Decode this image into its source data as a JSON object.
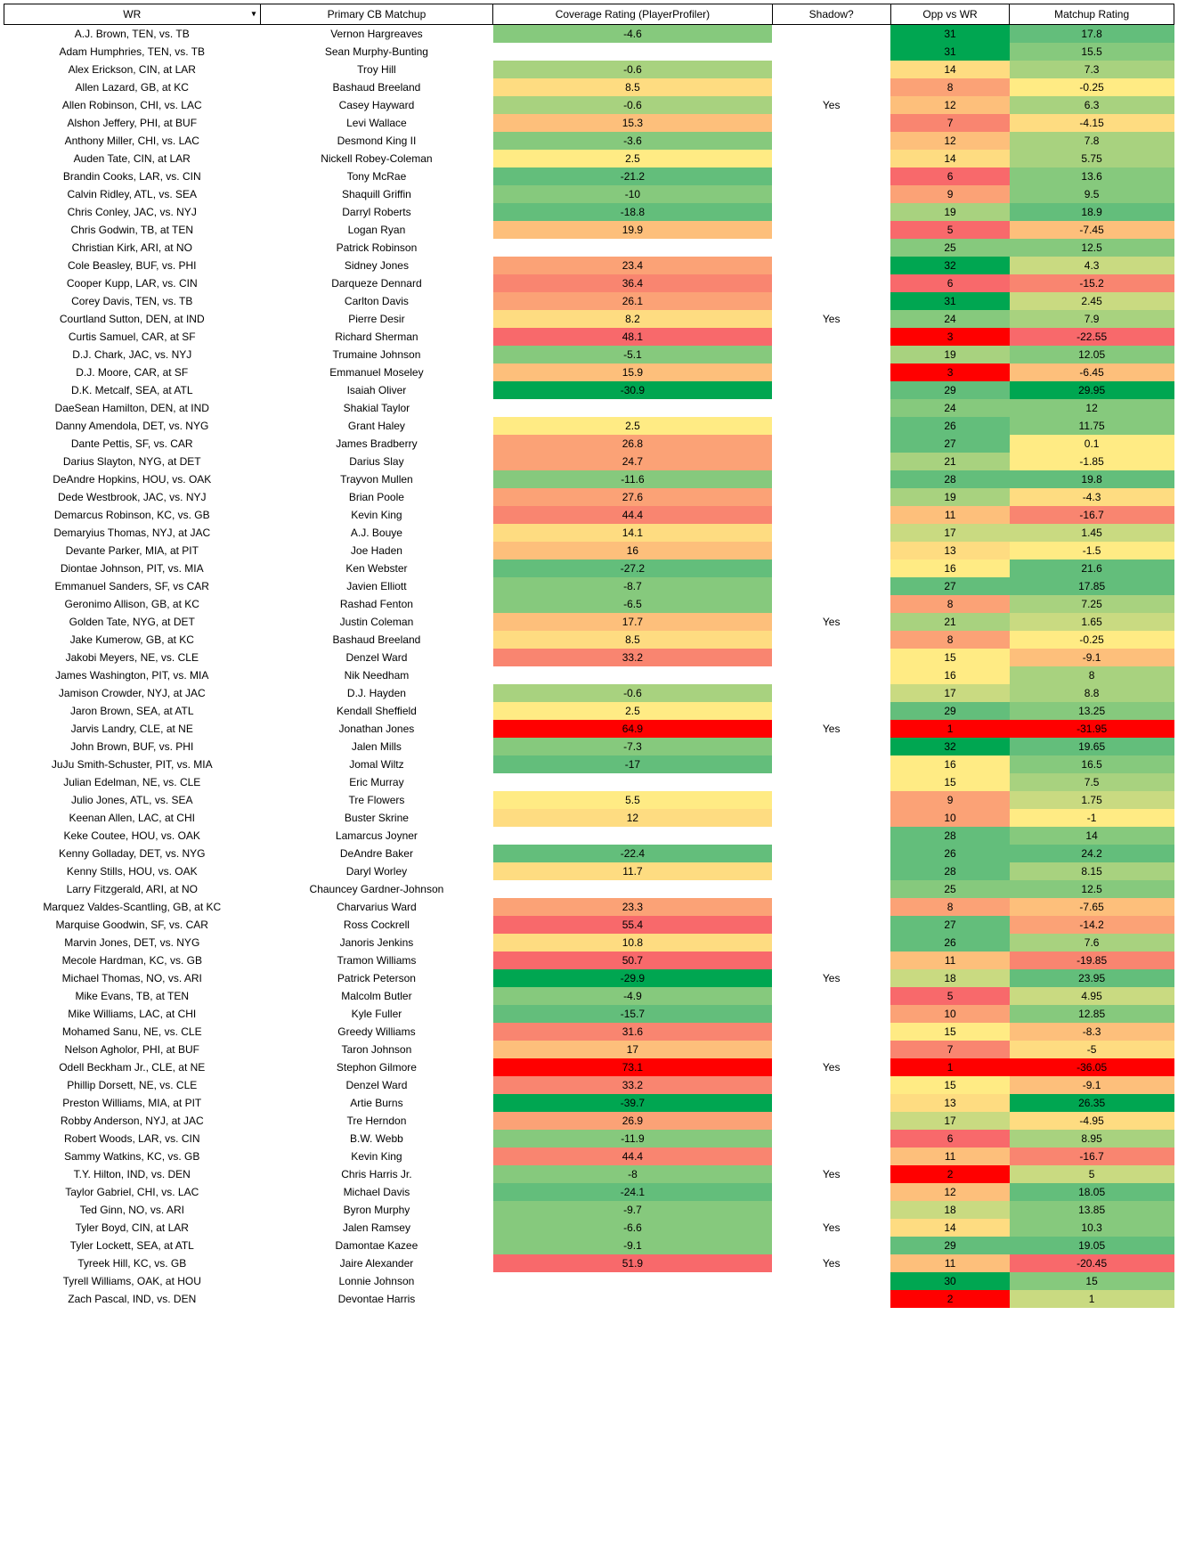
{
  "headers": {
    "wr": "WR",
    "cb": "Primary CB Matchup",
    "coverage": "Coverage Rating (PlayerProfiler)",
    "shadow": "Shadow?",
    "opp": "Opp vs WR",
    "matchup": "Matchup Rating"
  },
  "palette": {
    "g5": "#00a651",
    "g4": "#63be7b",
    "g3": "#86c97d",
    "g2": "#a8d27f",
    "g1": "#c9da81",
    "y2": "#ffeb84",
    "y1": "#fedc81",
    "o1": "#fdbf7b",
    "o2": "#fba276",
    "o3": "#f98570",
    "r1": "#f8696b",
    "r2": "#ff0000",
    "white": "#ffffff"
  },
  "rows": [
    {
      "wr": "A.J. Brown, TEN, vs. TB",
      "cb": "Vernon Hargreaves",
      "cov": "-4.6",
      "covC": "g3",
      "shadow": "",
      "opp": "31",
      "oppC": "g5",
      "match": "17.8",
      "matchC": "g4"
    },
    {
      "wr": "Adam Humphries, TEN, vs. TB",
      "cb": "Sean Murphy-Bunting",
      "cov": "",
      "covC": "white",
      "shadow": "",
      "opp": "31",
      "oppC": "g5",
      "match": "15.5",
      "matchC": "g3"
    },
    {
      "wr": "Alex Erickson, CIN, at LAR",
      "cb": "Troy Hill",
      "cov": "-0.6",
      "covC": "g2",
      "shadow": "",
      "opp": "14",
      "oppC": "y1",
      "match": "7.3",
      "matchC": "g2"
    },
    {
      "wr": "Allen Lazard, GB, at KC",
      "cb": "Bashaud Breeland",
      "cov": "8.5",
      "covC": "y1",
      "shadow": "",
      "opp": "8",
      "oppC": "o2",
      "match": "-0.25",
      "matchC": "y2"
    },
    {
      "wr": "Allen Robinson, CHI, vs. LAC",
      "cb": "Casey Hayward",
      "cov": "-0.6",
      "covC": "g2",
      "shadow": "Yes",
      "opp": "12",
      "oppC": "o1",
      "match": "6.3",
      "matchC": "g2"
    },
    {
      "wr": "Alshon Jeffery, PHI, at BUF",
      "cb": "Levi Wallace",
      "cov": "15.3",
      "covC": "o1",
      "shadow": "",
      "opp": "7",
      "oppC": "o3",
      "match": "-4.15",
      "matchC": "y1"
    },
    {
      "wr": "Anthony Miller, CHI, vs. LAC",
      "cb": "Desmond King II",
      "cov": "-3.6",
      "covC": "g3",
      "shadow": "",
      "opp": "12",
      "oppC": "o1",
      "match": "7.8",
      "matchC": "g2"
    },
    {
      "wr": "Auden Tate, CIN, at LAR",
      "cb": "Nickell Robey-Coleman",
      "cov": "2.5",
      "covC": "y2",
      "shadow": "",
      "opp": "14",
      "oppC": "y1",
      "match": "5.75",
      "matchC": "g2"
    },
    {
      "wr": "Brandin Cooks, LAR, vs. CIN",
      "cb": "Tony McRae",
      "cov": "-21.2",
      "covC": "g4",
      "shadow": "",
      "opp": "6",
      "oppC": "r1",
      "match": "13.6",
      "matchC": "g3"
    },
    {
      "wr": "Calvin Ridley, ATL, vs. SEA",
      "cb": "Shaquill Griffin",
      "cov": "-10",
      "covC": "g3",
      "shadow": "",
      "opp": "9",
      "oppC": "o2",
      "match": "9.5",
      "matchC": "g3"
    },
    {
      "wr": "Chris Conley, JAC, vs. NYJ",
      "cb": "Darryl Roberts",
      "cov": "-18.8",
      "covC": "g4",
      "shadow": "",
      "opp": "19",
      "oppC": "g2",
      "match": "18.9",
      "matchC": "g4"
    },
    {
      "wr": "Chris Godwin, TB, at TEN",
      "cb": "Logan Ryan",
      "cov": "19.9",
      "covC": "o1",
      "shadow": "",
      "opp": "5",
      "oppC": "r1",
      "match": "-7.45",
      "matchC": "o1"
    },
    {
      "wr": "Christian Kirk, ARI, at NO",
      "cb": "Patrick Robinson",
      "cov": "",
      "covC": "white",
      "shadow": "",
      "opp": "25",
      "oppC": "g3",
      "match": "12.5",
      "matchC": "g3"
    },
    {
      "wr": "Cole Beasley, BUF, vs. PHI",
      "cb": "Sidney Jones",
      "cov": "23.4",
      "covC": "o2",
      "shadow": "",
      "opp": "32",
      "oppC": "g5",
      "match": "4.3",
      "matchC": "g1"
    },
    {
      "wr": "Cooper Kupp, LAR, vs. CIN",
      "cb": "Darqueze Dennard",
      "cov": "36.4",
      "covC": "o3",
      "shadow": "",
      "opp": "6",
      "oppC": "r1",
      "match": "-15.2",
      "matchC": "o3"
    },
    {
      "wr": "Corey Davis, TEN, vs. TB",
      "cb": "Carlton Davis",
      "cov": "26.1",
      "covC": "o2",
      "shadow": "",
      "opp": "31",
      "oppC": "g5",
      "match": "2.45",
      "matchC": "g1"
    },
    {
      "wr": "Courtland Sutton, DEN, at IND",
      "cb": "Pierre Desir",
      "cov": "8.2",
      "covC": "y1",
      "shadow": "Yes",
      "opp": "24",
      "oppC": "g3",
      "match": "7.9",
      "matchC": "g2"
    },
    {
      "wr": "Curtis Samuel, CAR, at SF",
      "cb": "Richard Sherman",
      "cov": "48.1",
      "covC": "r1",
      "shadow": "",
      "opp": "3",
      "oppC": "r2",
      "match": "-22.55",
      "matchC": "r1"
    },
    {
      "wr": "D.J. Chark, JAC, vs. NYJ",
      "cb": "Trumaine Johnson",
      "cov": "-5.1",
      "covC": "g3",
      "shadow": "",
      "opp": "19",
      "oppC": "g2",
      "match": "12.05",
      "matchC": "g3"
    },
    {
      "wr": "D.J. Moore, CAR, at SF",
      "cb": "Emmanuel Moseley",
      "cov": "15.9",
      "covC": "o1",
      "shadow": "",
      "opp": "3",
      "oppC": "r2",
      "match": "-6.45",
      "matchC": "o1"
    },
    {
      "wr": "D.K. Metcalf, SEA, at ATL",
      "cb": "Isaiah Oliver",
      "cov": "-30.9",
      "covC": "g5",
      "shadow": "",
      "opp": "29",
      "oppC": "g4",
      "match": "29.95",
      "matchC": "g5"
    },
    {
      "wr": "DaeSean Hamilton, DEN, at IND",
      "cb": "Shakial Taylor",
      "cov": "",
      "covC": "white",
      "shadow": "",
      "opp": "24",
      "oppC": "g3",
      "match": "12",
      "matchC": "g3"
    },
    {
      "wr": "Danny Amendola, DET, vs. NYG",
      "cb": "Grant Haley",
      "cov": "2.5",
      "covC": "y2",
      "shadow": "",
      "opp": "26",
      "oppC": "g4",
      "match": "11.75",
      "matchC": "g3"
    },
    {
      "wr": "Dante Pettis, SF, vs. CAR",
      "cb": "James Bradberry",
      "cov": "26.8",
      "covC": "o2",
      "shadow": "",
      "opp": "27",
      "oppC": "g4",
      "match": "0.1",
      "matchC": "y2"
    },
    {
      "wr": "Darius Slayton, NYG, at DET",
      "cb": "Darius Slay",
      "cov": "24.7",
      "covC": "o2",
      "shadow": "",
      "opp": "21",
      "oppC": "g2",
      "match": "-1.85",
      "matchC": "y2"
    },
    {
      "wr": "DeAndre Hopkins, HOU, vs. OAK",
      "cb": "Trayvon Mullen",
      "cov": "-11.6",
      "covC": "g3",
      "shadow": "",
      "opp": "28",
      "oppC": "g4",
      "match": "19.8",
      "matchC": "g4"
    },
    {
      "wr": "Dede Westbrook, JAC, vs. NYJ",
      "cb": "Brian Poole",
      "cov": "27.6",
      "covC": "o2",
      "shadow": "",
      "opp": "19",
      "oppC": "g2",
      "match": "-4.3",
      "matchC": "y1"
    },
    {
      "wr": "Demarcus Robinson, KC, vs. GB",
      "cb": "Kevin King",
      "cov": "44.4",
      "covC": "o3",
      "shadow": "",
      "opp": "11",
      "oppC": "o1",
      "match": "-16.7",
      "matchC": "o3"
    },
    {
      "wr": "Demaryius Thomas, NYJ, at JAC",
      "cb": "A.J. Bouye",
      "cov": "14.1",
      "covC": "y1",
      "shadow": "",
      "opp": "17",
      "oppC": "g1",
      "match": "1.45",
      "matchC": "g1"
    },
    {
      "wr": "Devante Parker, MIA, at PIT",
      "cb": "Joe Haden",
      "cov": "16",
      "covC": "o1",
      "shadow": "",
      "opp": "13",
      "oppC": "y1",
      "match": "-1.5",
      "matchC": "y2"
    },
    {
      "wr": "Diontae Johnson, PIT, vs. MIA",
      "cb": "Ken Webster",
      "cov": "-27.2",
      "covC": "g4",
      "shadow": "",
      "opp": "16",
      "oppC": "y2",
      "match": "21.6",
      "matchC": "g4"
    },
    {
      "wr": "Emmanuel Sanders, SF, vs CAR",
      "cb": "Javien Elliott",
      "cov": "-8.7",
      "covC": "g3",
      "shadow": "",
      "opp": "27",
      "oppC": "g4",
      "match": "17.85",
      "matchC": "g4"
    },
    {
      "wr": "Geronimo Allison, GB, at KC",
      "cb": "Rashad Fenton",
      "cov": "-6.5",
      "covC": "g3",
      "shadow": "",
      "opp": "8",
      "oppC": "o2",
      "match": "7.25",
      "matchC": "g2"
    },
    {
      "wr": "Golden Tate, NYG, at DET",
      "cb": "Justin Coleman",
      "cov": "17.7",
      "covC": "o1",
      "shadow": "Yes",
      "opp": "21",
      "oppC": "g2",
      "match": "1.65",
      "matchC": "g1"
    },
    {
      "wr": "Jake Kumerow, GB, at KC",
      "cb": "Bashaud Breeland",
      "cov": "8.5",
      "covC": "y1",
      "shadow": "",
      "opp": "8",
      "oppC": "o2",
      "match": "-0.25",
      "matchC": "y2"
    },
    {
      "wr": "Jakobi Meyers, NE, vs. CLE",
      "cb": "Denzel Ward",
      "cov": "33.2",
      "covC": "o3",
      "shadow": "",
      "opp": "15",
      "oppC": "y2",
      "match": "-9.1",
      "matchC": "o1"
    },
    {
      "wr": "James Washington, PIT, vs. MIA",
      "cb": "Nik Needham",
      "cov": "",
      "covC": "white",
      "shadow": "",
      "opp": "16",
      "oppC": "y2",
      "match": "8",
      "matchC": "g2"
    },
    {
      "wr": "Jamison Crowder, NYJ, at JAC",
      "cb": "D.J. Hayden",
      "cov": "-0.6",
      "covC": "g2",
      "shadow": "",
      "opp": "17",
      "oppC": "g1",
      "match": "8.8",
      "matchC": "g2"
    },
    {
      "wr": "Jaron Brown, SEA, at ATL",
      "cb": "Kendall Sheffield",
      "cov": "2.5",
      "covC": "y2",
      "shadow": "",
      "opp": "29",
      "oppC": "g4",
      "match": "13.25",
      "matchC": "g3"
    },
    {
      "wr": "Jarvis Landry, CLE, at NE",
      "cb": "Jonathan Jones",
      "cov": "64.9",
      "covC": "r2",
      "shadow": "Yes",
      "opp": "1",
      "oppC": "r2",
      "match": "-31.95",
      "matchC": "r2"
    },
    {
      "wr": "John Brown, BUF, vs. PHI",
      "cb": "Jalen Mills",
      "cov": "-7.3",
      "covC": "g3",
      "shadow": "",
      "opp": "32",
      "oppC": "g5",
      "match": "19.65",
      "matchC": "g4"
    },
    {
      "wr": "JuJu Smith-Schuster, PIT, vs. MIA",
      "cb": "Jomal Wiltz",
      "cov": "-17",
      "covC": "g4",
      "shadow": "",
      "opp": "16",
      "oppC": "y2",
      "match": "16.5",
      "matchC": "g3"
    },
    {
      "wr": "Julian Edelman, NE, vs. CLE",
      "cb": "Eric Murray",
      "cov": "",
      "covC": "white",
      "shadow": "",
      "opp": "15",
      "oppC": "y2",
      "match": "7.5",
      "matchC": "g2"
    },
    {
      "wr": "Julio Jones, ATL, vs. SEA",
      "cb": "Tre Flowers",
      "cov": "5.5",
      "covC": "y2",
      "shadow": "",
      "opp": "9",
      "oppC": "o2",
      "match": "1.75",
      "matchC": "g1"
    },
    {
      "wr": "Keenan Allen, LAC, at CHI",
      "cb": "Buster Skrine",
      "cov": "12",
      "covC": "y1",
      "shadow": "",
      "opp": "10",
      "oppC": "o2",
      "match": "-1",
      "matchC": "y2"
    },
    {
      "wr": "Keke Coutee, HOU, vs. OAK",
      "cb": "Lamarcus Joyner",
      "cov": "",
      "covC": "white",
      "shadow": "",
      "opp": "28",
      "oppC": "g4",
      "match": "14",
      "matchC": "g3"
    },
    {
      "wr": "Kenny Golladay, DET, vs. NYG",
      "cb": "DeAndre Baker",
      "cov": "-22.4",
      "covC": "g4",
      "shadow": "",
      "opp": "26",
      "oppC": "g4",
      "match": "24.2",
      "matchC": "g4"
    },
    {
      "wr": "Kenny Stills, HOU, vs. OAK",
      "cb": "Daryl Worley",
      "cov": "11.7",
      "covC": "y1",
      "shadow": "",
      "opp": "28",
      "oppC": "g4",
      "match": "8.15",
      "matchC": "g2"
    },
    {
      "wr": "Larry Fitzgerald, ARI, at NO",
      "cb": "Chauncey Gardner-Johnson",
      "cov": "",
      "covC": "white",
      "shadow": "",
      "opp": "25",
      "oppC": "g3",
      "match": "12.5",
      "matchC": "g3"
    },
    {
      "wr": "Marquez Valdes-Scantling, GB, at KC",
      "cb": "Charvarius Ward",
      "cov": "23.3",
      "covC": "o2",
      "shadow": "",
      "opp": "8",
      "oppC": "o2",
      "match": "-7.65",
      "matchC": "o1"
    },
    {
      "wr": "Marquise Goodwin, SF, vs. CAR",
      "cb": "Ross Cockrell",
      "cov": "55.4",
      "covC": "r1",
      "shadow": "",
      "opp": "27",
      "oppC": "g4",
      "match": "-14.2",
      "matchC": "o2"
    },
    {
      "wr": "Marvin Jones, DET, vs. NYG",
      "cb": "Janoris Jenkins",
      "cov": "10.8",
      "covC": "y1",
      "shadow": "",
      "opp": "26",
      "oppC": "g4",
      "match": "7.6",
      "matchC": "g2"
    },
    {
      "wr": "Mecole Hardman, KC, vs. GB",
      "cb": "Tramon Williams",
      "cov": "50.7",
      "covC": "r1",
      "shadow": "",
      "opp": "11",
      "oppC": "o1",
      "match": "-19.85",
      "matchC": "o3"
    },
    {
      "wr": "Michael Thomas, NO, vs. ARI",
      "cb": "Patrick Peterson",
      "cov": "-29.9",
      "covC": "g5",
      "shadow": "Yes",
      "opp": "18",
      "oppC": "g1",
      "match": "23.95",
      "matchC": "g4"
    },
    {
      "wr": "Mike Evans, TB, at TEN",
      "cb": "Malcolm Butler",
      "cov": "-4.9",
      "covC": "g3",
      "shadow": "",
      "opp": "5",
      "oppC": "r1",
      "match": "4.95",
      "matchC": "g1"
    },
    {
      "wr": "Mike Williams, LAC, at CHI",
      "cb": "Kyle Fuller",
      "cov": "-15.7",
      "covC": "g4",
      "shadow": "",
      "opp": "10",
      "oppC": "o2",
      "match": "12.85",
      "matchC": "g3"
    },
    {
      "wr": "Mohamed Sanu, NE, vs. CLE",
      "cb": "Greedy Williams",
      "cov": "31.6",
      "covC": "o3",
      "shadow": "",
      "opp": "15",
      "oppC": "y2",
      "match": "-8.3",
      "matchC": "o1"
    },
    {
      "wr": "Nelson Agholor, PHI, at BUF",
      "cb": "Taron Johnson",
      "cov": "17",
      "covC": "o1",
      "shadow": "",
      "opp": "7",
      "oppC": "o3",
      "match": "-5",
      "matchC": "y1"
    },
    {
      "wr": "Odell Beckham Jr., CLE, at NE",
      "cb": "Stephon Gilmore",
      "cov": "73.1",
      "covC": "r2",
      "shadow": "Yes",
      "opp": "1",
      "oppC": "r2",
      "match": "-36.05",
      "matchC": "r2"
    },
    {
      "wr": "Phillip Dorsett, NE, vs. CLE",
      "cb": "Denzel Ward",
      "cov": "33.2",
      "covC": "o3",
      "shadow": "",
      "opp": "15",
      "oppC": "y2",
      "match": "-9.1",
      "matchC": "o1"
    },
    {
      "wr": "Preston Williams, MIA, at PIT",
      "cb": "Artie Burns",
      "cov": "-39.7",
      "covC": "g5",
      "shadow": "",
      "opp": "13",
      "oppC": "y1",
      "match": "26.35",
      "matchC": "g5"
    },
    {
      "wr": "Robby Anderson, NYJ, at JAC",
      "cb": "Tre Herndon",
      "cov": "26.9",
      "covC": "o2",
      "shadow": "",
      "opp": "17",
      "oppC": "g1",
      "match": "-4.95",
      "matchC": "y1"
    },
    {
      "wr": "Robert Woods, LAR, vs. CIN",
      "cb": "B.W. Webb",
      "cov": "-11.9",
      "covC": "g3",
      "shadow": "",
      "opp": "6",
      "oppC": "r1",
      "match": "8.95",
      "matchC": "g2"
    },
    {
      "wr": "Sammy Watkins, KC, vs. GB",
      "cb": "Kevin King",
      "cov": "44.4",
      "covC": "o3",
      "shadow": "",
      "opp": "11",
      "oppC": "o1",
      "match": "-16.7",
      "matchC": "o3"
    },
    {
      "wr": "T.Y. Hilton, IND, vs. DEN",
      "cb": "Chris Harris Jr.",
      "cov": "-8",
      "covC": "g3",
      "shadow": "Yes",
      "opp": "2",
      "oppC": "r2",
      "match": "5",
      "matchC": "g1"
    },
    {
      "wr": "Taylor Gabriel, CHI, vs. LAC",
      "cb": "Michael Davis",
      "cov": "-24.1",
      "covC": "g4",
      "shadow": "",
      "opp": "12",
      "oppC": "o1",
      "match": "18.05",
      "matchC": "g4"
    },
    {
      "wr": "Ted Ginn, NO, vs. ARI",
      "cb": "Byron Murphy",
      "cov": "-9.7",
      "covC": "g3",
      "shadow": "",
      "opp": "18",
      "oppC": "g1",
      "match": "13.85",
      "matchC": "g3"
    },
    {
      "wr": "Tyler Boyd, CIN, at LAR",
      "cb": "Jalen Ramsey",
      "cov": "-6.6",
      "covC": "g3",
      "shadow": "Yes",
      "opp": "14",
      "oppC": "y1",
      "match": "10.3",
      "matchC": "g3"
    },
    {
      "wr": "Tyler Lockett, SEA, at ATL",
      "cb": "Damontae Kazee",
      "cov": "-9.1",
      "covC": "g3",
      "shadow": "",
      "opp": "29",
      "oppC": "g4",
      "match": "19.05",
      "matchC": "g4"
    },
    {
      "wr": "Tyreek Hill, KC, vs. GB",
      "cb": "Jaire Alexander",
      "cov": "51.9",
      "covC": "r1",
      "shadow": "Yes",
      "opp": "11",
      "oppC": "o1",
      "match": "-20.45",
      "matchC": "r1"
    },
    {
      "wr": "Tyrell Williams, OAK, at HOU",
      "cb": "Lonnie Johnson",
      "cov": "",
      "covC": "white",
      "shadow": "",
      "opp": "30",
      "oppC": "g5",
      "match": "15",
      "matchC": "g3"
    },
    {
      "wr": "Zach Pascal, IND, vs. DEN",
      "cb": "Devontae Harris",
      "cov": "",
      "covC": "white",
      "shadow": "",
      "opp": "2",
      "oppC": "r2",
      "match": "1",
      "matchC": "g1"
    }
  ]
}
